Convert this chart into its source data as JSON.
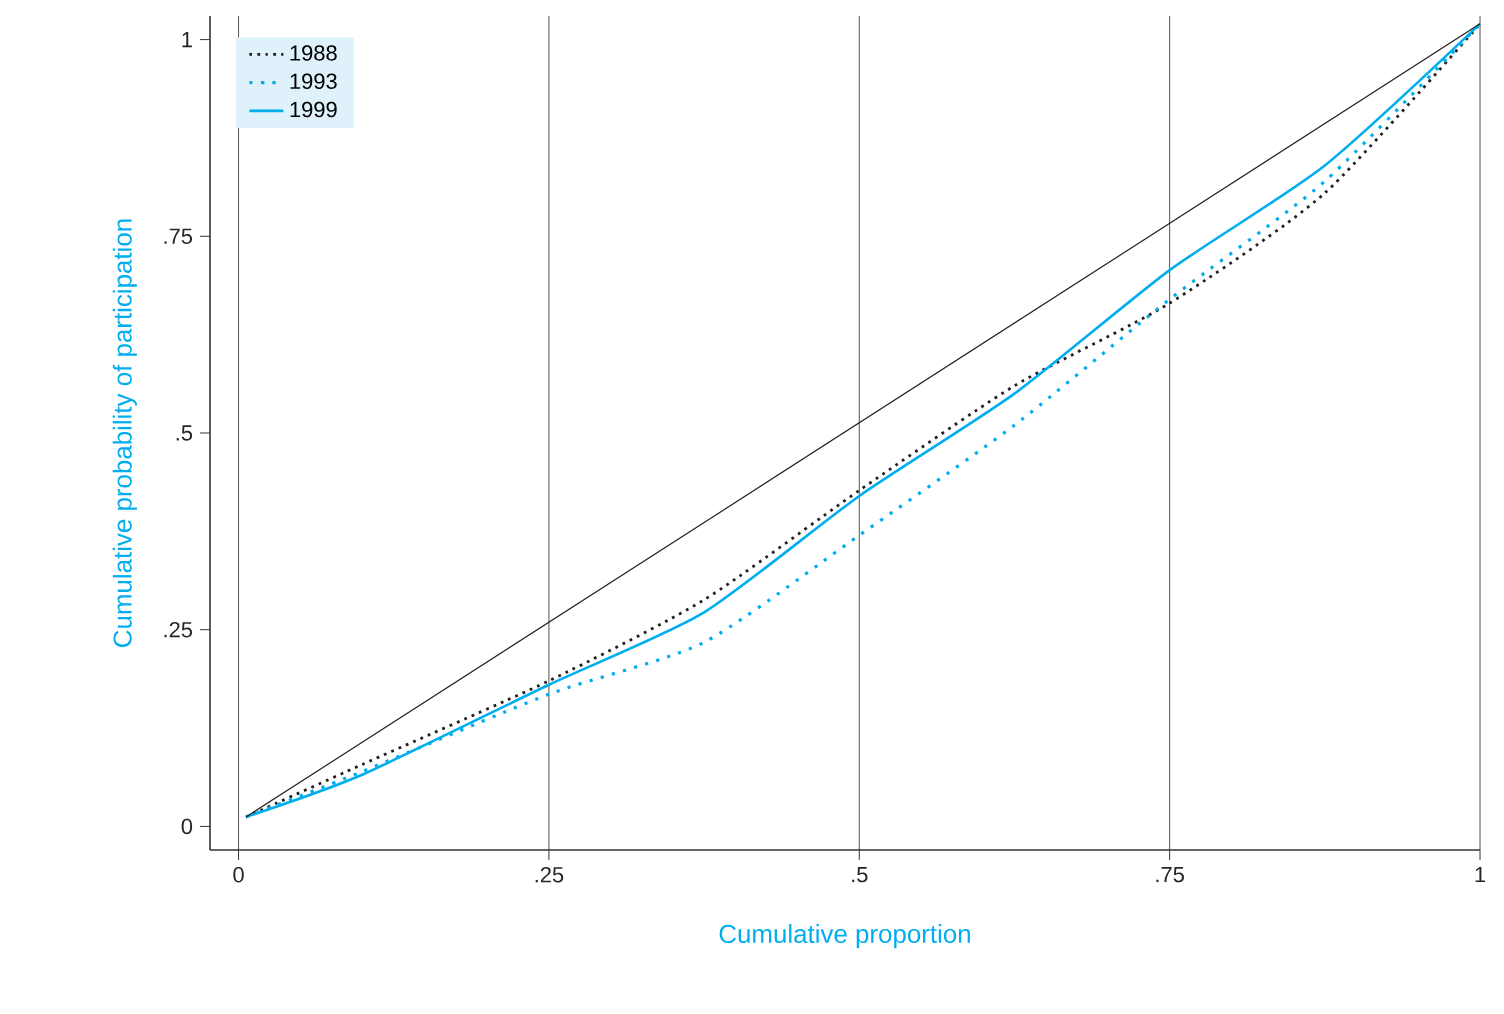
{
  "chart_data": {
    "type": "line",
    "xlabel": "Cumulative proportion",
    "ylabel": "Cumulative probability of participation",
    "xlim": [
      -0.023,
      1
    ],
    "ylim": [
      -0.03,
      1.03
    ],
    "xticks": [
      0,
      {
        "value": 0.25,
        "label": ".25"
      },
      {
        "value": 0.5,
        "label": ".5"
      },
      {
        "value": 0.75,
        "label": ".75"
      },
      1
    ],
    "yticks": [
      0,
      {
        "value": 0.25,
        "label": ".25"
      },
      {
        "value": 0.5,
        "label": ".5"
      },
      {
        "value": 0.75,
        "label": ".75"
      },
      1
    ],
    "grid": "x",
    "legend": "top left",
    "series": [
      {
        "name": "1988",
        "color": "#231f20",
        "line_style": "dotted",
        "x": [
          0.006,
          0.1,
          0.25,
          0.375,
          0.5,
          0.625,
          0.75,
          0.875,
          1
        ],
        "values": [
          0.012,
          0.079,
          0.185,
          0.288,
          0.427,
          0.56,
          0.665,
          0.805,
          1.02
        ]
      },
      {
        "name": "1993",
        "color": "#00aeef",
        "line_style": "dotted",
        "x": [
          0.006,
          0.1,
          0.25,
          0.375,
          0.5,
          0.625,
          0.75,
          0.875,
          1
        ],
        "values": [
          0.012,
          0.07,
          0.168,
          0.234,
          0.37,
          0.51,
          0.67,
          0.82,
          1.02
        ]
      },
      {
        "name": "1999",
        "color": "#00aeef",
        "line_style": "solid",
        "x": [
          0.006,
          0.1,
          0.25,
          0.375,
          0.5,
          0.625,
          0.75,
          0.875,
          1
        ],
        "values": [
          0.012,
          0.066,
          0.18,
          0.272,
          0.42,
          0.55,
          0.707,
          0.84,
          1.02
        ]
      },
      {
        "color": "#231f20",
        "line_style": "solid",
        "x": [
          0.006,
          1
        ],
        "values": [
          0.012,
          1.02
        ]
      }
    ]
  }
}
